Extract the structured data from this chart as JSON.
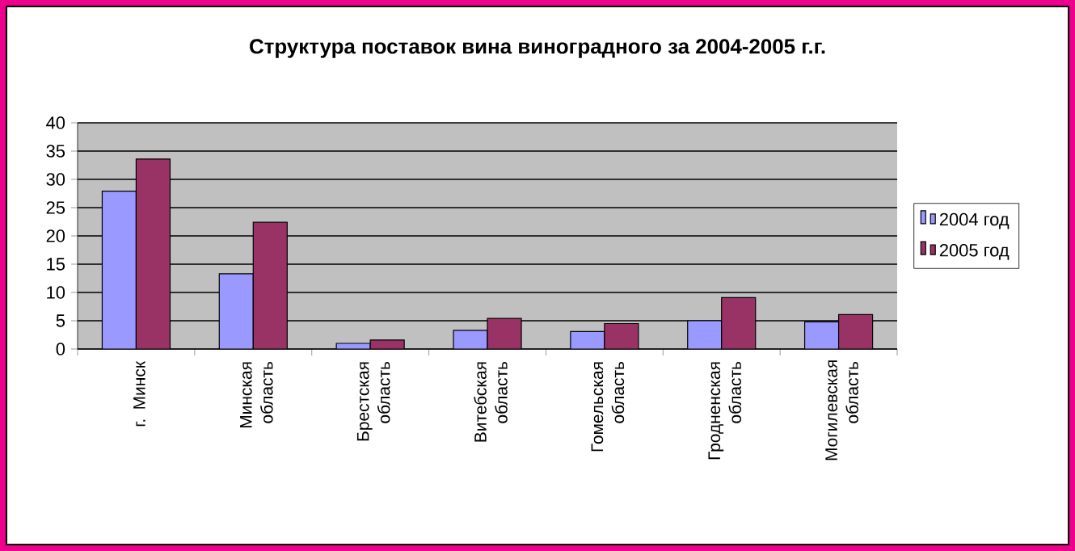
{
  "chart_data": {
    "type": "bar",
    "title": "Структура поставок вина виноградного за 2004-2005 г.г.",
    "categories": [
      "г. Минск",
      "Минская область",
      "Брестская область",
      "Витебская область",
      "Гомельская область",
      "Гродненская область",
      "Могилевская область"
    ],
    "series": [
      {
        "name": "2004 год",
        "color": "#9999ff",
        "values": [
          27.9,
          13.3,
          1.0,
          3.3,
          3.1,
          5.0,
          4.8
        ]
      },
      {
        "name": "2005 год",
        "color": "#993366",
        "values": [
          33.6,
          22.4,
          1.6,
          5.4,
          4.5,
          9.1,
          6.1
        ]
      }
    ],
    "ylim": [
      0,
      40
    ],
    "yticks": [
      0,
      5,
      10,
      15,
      20,
      25,
      30,
      35,
      40
    ],
    "grid": "y",
    "legend": "right"
  }
}
